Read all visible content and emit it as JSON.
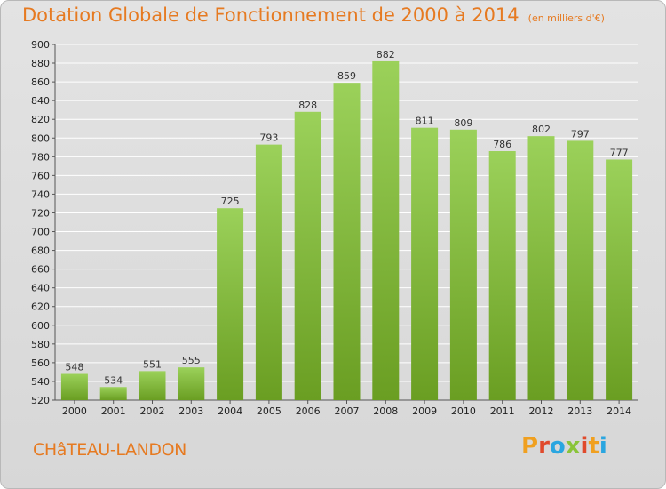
{
  "header": {
    "title": "Dotation Globale de Fonctionnement de 2000 à 2014",
    "subtitle": "(en milliers d'€)"
  },
  "footer": {
    "commune": "CHâTEAU-LANDON",
    "brand_letters": [
      "P",
      "r",
      "o",
      "x",
      "i",
      "t",
      "i"
    ],
    "brand_colors": [
      "#f0a020",
      "#e04a2c",
      "#2aa6e0",
      "#8ac43a",
      "#e04a2c",
      "#f0a020",
      "#2aa6e0"
    ]
  },
  "colors": {
    "bar_top": "#9bd15a",
    "bar_bottom": "#6a9e22",
    "grid": "#ffffff",
    "accent": "#e67a21"
  },
  "chart_data": {
    "type": "bar",
    "categories": [
      "2000",
      "2001",
      "2002",
      "2003",
      "2004",
      "2005",
      "2006",
      "2007",
      "2008",
      "2009",
      "2010",
      "2011",
      "2012",
      "2013",
      "2014"
    ],
    "values": [
      548,
      534,
      551,
      555,
      725,
      793,
      828,
      859,
      882,
      811,
      809,
      786,
      802,
      797,
      777
    ],
    "data_labels": [
      "548",
      "534",
      "551",
      "555",
      "725",
      "793",
      "828",
      "859",
      "882",
      "811",
      "809",
      "786",
      "802",
      "797",
      "777"
    ],
    "title": "Dotation Globale de Fonctionnement de 2000 à 2014",
    "subtitle": "(en milliers d'€)",
    "xlabel": "",
    "ylabel": "",
    "ylim": [
      520,
      900
    ],
    "yticks": [
      520,
      540,
      560,
      580,
      600,
      620,
      640,
      660,
      680,
      700,
      720,
      740,
      760,
      780,
      800,
      820,
      840,
      860,
      880,
      900
    ],
    "ytick_labels": [
      "520",
      "540",
      "560",
      "580",
      "600",
      "620",
      "640",
      "660",
      "680",
      "700",
      "720",
      "740",
      "760",
      "780",
      "800",
      "820",
      "840",
      "860",
      "880",
      "900"
    ],
    "grid": true,
    "legend": "none"
  }
}
